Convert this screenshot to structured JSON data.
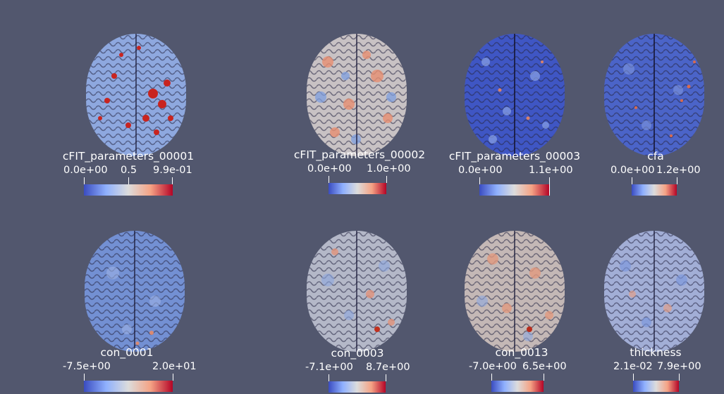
{
  "viewer": {
    "background_color": "#52576e",
    "colormap": "Cool to Warm",
    "colormap_stops": [
      "#3a4cc0",
      "#8fb0fe",
      "#dcdcdc",
      "#f5a385",
      "#b40426"
    ]
  },
  "panels": [
    {
      "array": "cFIT_parameters_00001",
      "min": "0.0e+00",
      "mid": "0.5",
      "max": "9.9e-01"
    },
    {
      "array": "cFIT_parameters_00002",
      "min": "0.0e+00",
      "mid": "",
      "max": "1.0e+00"
    },
    {
      "array": "cFIT_parameters_00003",
      "min": "0.0e+00",
      "mid": "",
      "max": "1.1e+00"
    },
    {
      "array": "cfa",
      "min": "0.0e+00",
      "mid": "",
      "max": "1.2e+00"
    },
    {
      "array": "con_0001",
      "min": "-7.5e+00",
      "mid": "",
      "max": "2.0e+01"
    },
    {
      "array": "con_0003",
      "min": "-7.1e+00",
      "mid": "",
      "max": "8.7e+00"
    },
    {
      "array": "con_0013",
      "min": "-7.0e+00",
      "mid": "",
      "max": "6.5e+00"
    },
    {
      "array": "thickness",
      "min": "2.1e-02",
      "mid": "",
      "max": "7.9e+00"
    }
  ]
}
